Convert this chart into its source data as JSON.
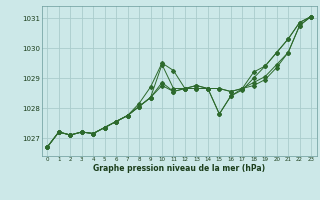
{
  "title": "Graphe pression niveau de la mer (hPa)",
  "background_color": "#cce8e8",
  "grid_color": "#aacccc",
  "line_color": "#2d6a2d",
  "xlim": [
    -0.5,
    23.5
  ],
  "ylim": [
    1026.4,
    1031.4
  ],
  "yticks": [
    1027,
    1028,
    1029,
    1030,
    1031
  ],
  "xticks": [
    0,
    1,
    2,
    3,
    4,
    5,
    6,
    7,
    8,
    9,
    10,
    11,
    12,
    13,
    14,
    15,
    16,
    17,
    18,
    19,
    20,
    21,
    22,
    23
  ],
  "series": [
    [
      1026.7,
      1027.2,
      1027.1,
      1027.2,
      1027.15,
      1027.35,
      1027.55,
      1027.75,
      1028.15,
      1028.7,
      1029.5,
      1029.25,
      1028.65,
      1028.75,
      1028.65,
      1027.8,
      1028.4,
      1028.6,
      1029.0,
      1029.4,
      1029.85,
      1030.3,
      1030.85,
      1031.05
    ],
    [
      1026.7,
      1027.2,
      1027.1,
      1027.2,
      1027.15,
      1027.35,
      1027.55,
      1027.75,
      1028.05,
      1028.35,
      1028.85,
      1028.55,
      1028.65,
      1028.65,
      1028.65,
      1028.65,
      1028.55,
      1028.65,
      1028.85,
      1029.05,
      1029.45,
      1029.85,
      1030.75,
      1031.05
    ],
    [
      1026.7,
      1027.2,
      1027.1,
      1027.2,
      1027.15,
      1027.35,
      1027.55,
      1027.75,
      1028.05,
      1028.35,
      1029.45,
      1028.65,
      1028.65,
      1028.65,
      1028.65,
      1028.65,
      1028.55,
      1028.65,
      1028.75,
      1028.95,
      1029.35,
      1029.85,
      1030.75,
      1031.05
    ],
    [
      1026.7,
      1027.2,
      1027.1,
      1027.2,
      1027.15,
      1027.35,
      1027.55,
      1027.75,
      1028.05,
      1028.35,
      1028.75,
      1028.55,
      1028.65,
      1028.75,
      1028.65,
      1027.8,
      1028.4,
      1028.65,
      1029.2,
      1029.4,
      1029.85,
      1030.3,
      1030.85,
      1031.05
    ]
  ]
}
